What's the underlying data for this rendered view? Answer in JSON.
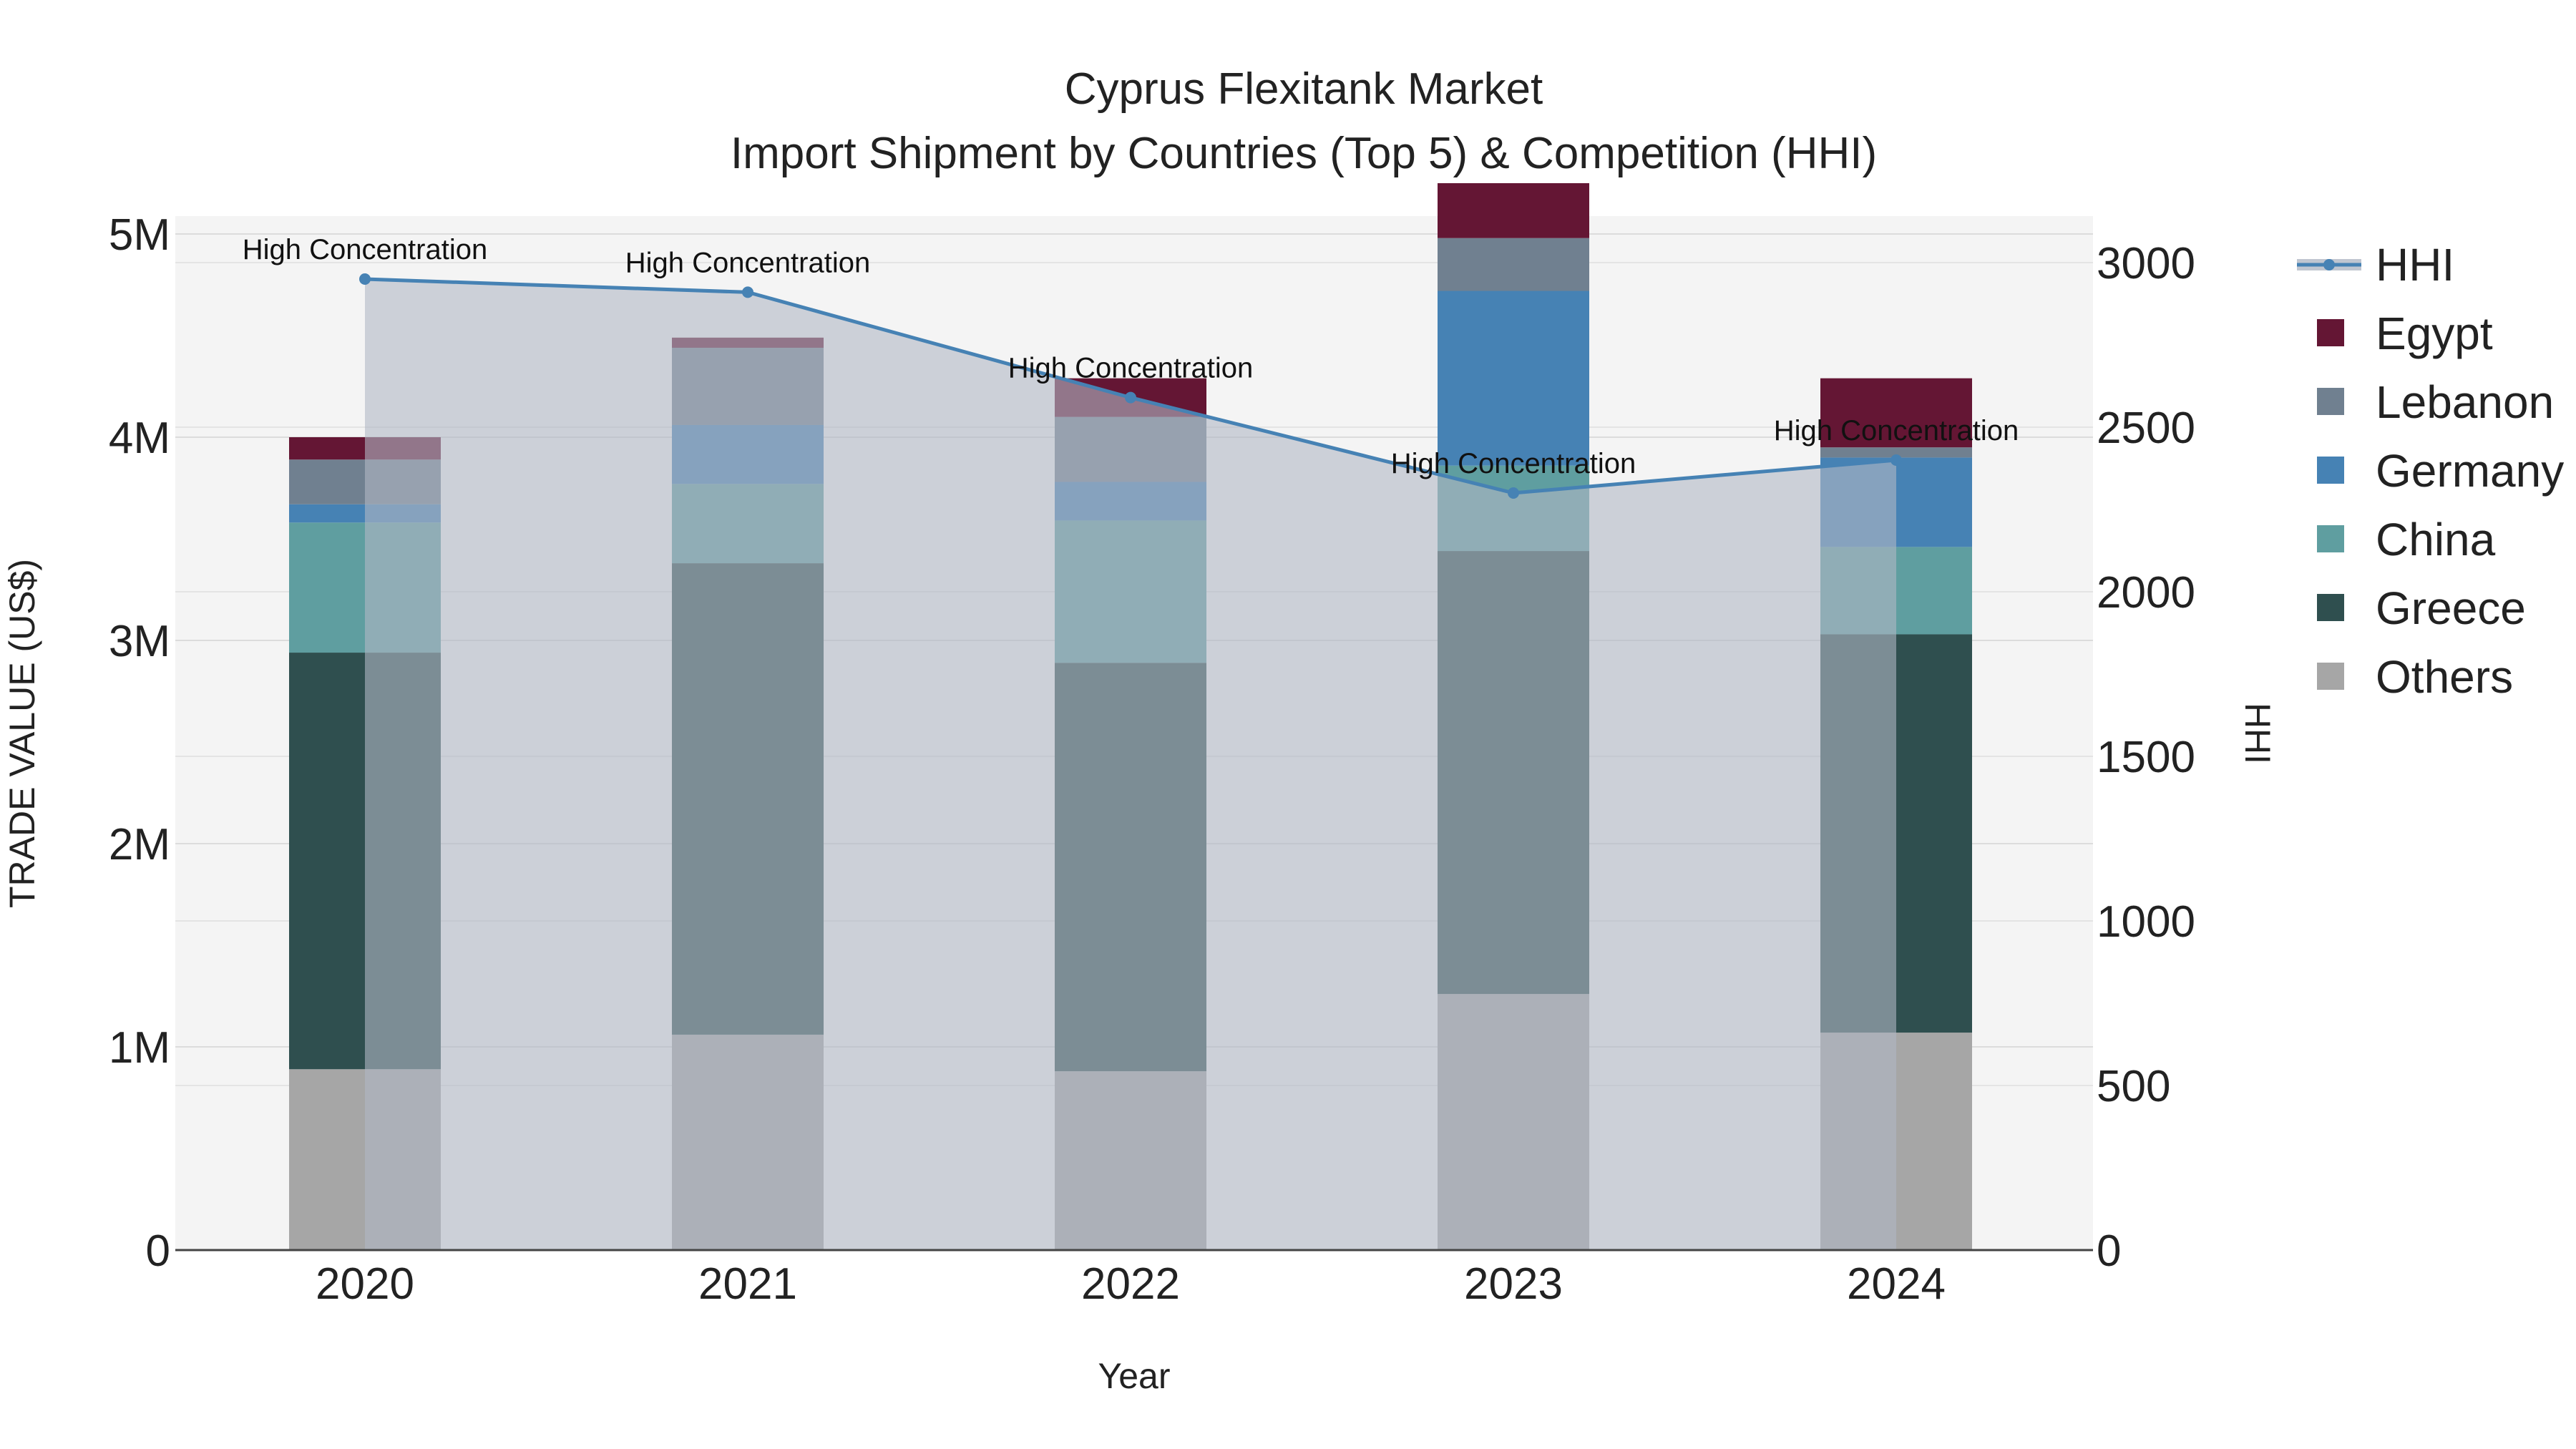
{
  "chart_data": {
    "type": "bar",
    "title": "Cyprus Flexitank Market",
    "subtitle": "Import Shipment by Countries (Top 5) & Competition (HHI)",
    "xlabel": "Year",
    "ylabel": "TRADE VALUE (US$)",
    "y2label": "HHI",
    "categories": [
      "2020",
      "2021",
      "2022",
      "2023",
      "2024"
    ],
    "ylim": [
      0,
      5000000
    ],
    "y2lim": [
      0,
      3100
    ],
    "yticks": [
      {
        "value": 0,
        "label": "0"
      },
      {
        "value": 1000000,
        "label": "1M"
      },
      {
        "value": 2000000,
        "label": "2M"
      },
      {
        "value": 3000000,
        "label": "3M"
      },
      {
        "value": 4000000,
        "label": "4M"
      },
      {
        "value": 5000000,
        "label": "5M"
      }
    ],
    "y2ticks": [
      {
        "value": 0,
        "label": "0"
      },
      {
        "value": 500,
        "label": "500"
      },
      {
        "value": 1000,
        "label": "1000"
      },
      {
        "value": 1500,
        "label": "1500"
      },
      {
        "value": 2000,
        "label": "2000"
      },
      {
        "value": 2500,
        "label": "2500"
      },
      {
        "value": 3000,
        "label": "3000"
      }
    ],
    "series": [
      {
        "name": "Others",
        "color": "#a6a6a6",
        "values": [
          890000,
          1060000,
          880000,
          1260000,
          1070000
        ]
      },
      {
        "name": "Greece",
        "color": "#2f4f4f",
        "values": [
          2050000,
          2320000,
          2010000,
          2180000,
          1960000
        ]
      },
      {
        "name": "China",
        "color": "#5f9ea0",
        "values": [
          640000,
          390000,
          700000,
          420000,
          430000
        ]
      },
      {
        "name": "Germany",
        "color": "#4682b4",
        "values": [
          90000,
          290000,
          190000,
          860000,
          440000
        ]
      },
      {
        "name": "Lebanon",
        "color": "#708090",
        "values": [
          220000,
          380000,
          320000,
          260000,
          50000
        ]
      },
      {
        "name": "Egypt",
        "color": "#641634",
        "values": [
          110000,
          50000,
          190000,
          270000,
          340000
        ]
      }
    ],
    "hhi": {
      "name": "HHI",
      "color": "#4682b4",
      "values": [
        2950,
        2910,
        2590,
        2300,
        2400
      ],
      "annotations": [
        "High Concentration",
        "High Concentration",
        "High Concentration",
        "High Concentration",
        "High Concentration"
      ]
    },
    "legend": [
      "HHI",
      "Egypt",
      "Lebanon",
      "Germany",
      "China",
      "Greece",
      "Others"
    ],
    "legend_position": "right"
  }
}
